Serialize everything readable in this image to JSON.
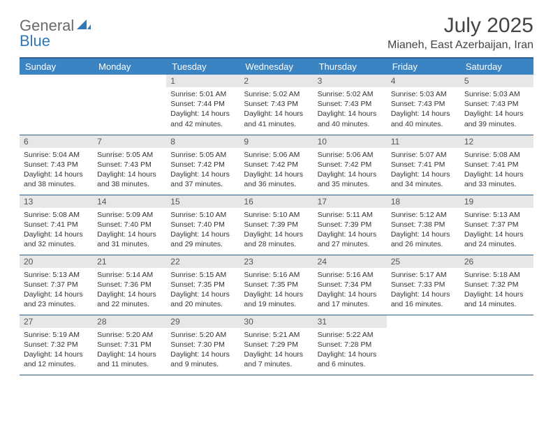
{
  "logo": {
    "part1": "General",
    "part2": "Blue"
  },
  "title": "July 2025",
  "location": "Mianeh, East Azerbaijan, Iran",
  "colors": {
    "header_bg": "#3b84c4",
    "header_border": "#2a5f8f",
    "daynum_bg": "#e7e7e7",
    "logo_gray": "#6a6a6a",
    "logo_blue": "#2e77b8"
  },
  "weekdays": [
    "Sunday",
    "Monday",
    "Tuesday",
    "Wednesday",
    "Thursday",
    "Friday",
    "Saturday"
  ],
  "weeks": [
    [
      null,
      null,
      {
        "d": "1",
        "sr": "5:01 AM",
        "ss": "7:44 PM",
        "dl": "14 hours and 42 minutes."
      },
      {
        "d": "2",
        "sr": "5:02 AM",
        "ss": "7:43 PM",
        "dl": "14 hours and 41 minutes."
      },
      {
        "d": "3",
        "sr": "5:02 AM",
        "ss": "7:43 PM",
        "dl": "14 hours and 40 minutes."
      },
      {
        "d": "4",
        "sr": "5:03 AM",
        "ss": "7:43 PM",
        "dl": "14 hours and 40 minutes."
      },
      {
        "d": "5",
        "sr": "5:03 AM",
        "ss": "7:43 PM",
        "dl": "14 hours and 39 minutes."
      }
    ],
    [
      {
        "d": "6",
        "sr": "5:04 AM",
        "ss": "7:43 PM",
        "dl": "14 hours and 38 minutes."
      },
      {
        "d": "7",
        "sr": "5:05 AM",
        "ss": "7:43 PM",
        "dl": "14 hours and 38 minutes."
      },
      {
        "d": "8",
        "sr": "5:05 AM",
        "ss": "7:42 PM",
        "dl": "14 hours and 37 minutes."
      },
      {
        "d": "9",
        "sr": "5:06 AM",
        "ss": "7:42 PM",
        "dl": "14 hours and 36 minutes."
      },
      {
        "d": "10",
        "sr": "5:06 AM",
        "ss": "7:42 PM",
        "dl": "14 hours and 35 minutes."
      },
      {
        "d": "11",
        "sr": "5:07 AM",
        "ss": "7:41 PM",
        "dl": "14 hours and 34 minutes."
      },
      {
        "d": "12",
        "sr": "5:08 AM",
        "ss": "7:41 PM",
        "dl": "14 hours and 33 minutes."
      }
    ],
    [
      {
        "d": "13",
        "sr": "5:08 AM",
        "ss": "7:41 PM",
        "dl": "14 hours and 32 minutes."
      },
      {
        "d": "14",
        "sr": "5:09 AM",
        "ss": "7:40 PM",
        "dl": "14 hours and 31 minutes."
      },
      {
        "d": "15",
        "sr": "5:10 AM",
        "ss": "7:40 PM",
        "dl": "14 hours and 29 minutes."
      },
      {
        "d": "16",
        "sr": "5:10 AM",
        "ss": "7:39 PM",
        "dl": "14 hours and 28 minutes."
      },
      {
        "d": "17",
        "sr": "5:11 AM",
        "ss": "7:39 PM",
        "dl": "14 hours and 27 minutes."
      },
      {
        "d": "18",
        "sr": "5:12 AM",
        "ss": "7:38 PM",
        "dl": "14 hours and 26 minutes."
      },
      {
        "d": "19",
        "sr": "5:13 AM",
        "ss": "7:37 PM",
        "dl": "14 hours and 24 minutes."
      }
    ],
    [
      {
        "d": "20",
        "sr": "5:13 AM",
        "ss": "7:37 PM",
        "dl": "14 hours and 23 minutes."
      },
      {
        "d": "21",
        "sr": "5:14 AM",
        "ss": "7:36 PM",
        "dl": "14 hours and 22 minutes."
      },
      {
        "d": "22",
        "sr": "5:15 AM",
        "ss": "7:35 PM",
        "dl": "14 hours and 20 minutes."
      },
      {
        "d": "23",
        "sr": "5:16 AM",
        "ss": "7:35 PM",
        "dl": "14 hours and 19 minutes."
      },
      {
        "d": "24",
        "sr": "5:16 AM",
        "ss": "7:34 PM",
        "dl": "14 hours and 17 minutes."
      },
      {
        "d": "25",
        "sr": "5:17 AM",
        "ss": "7:33 PM",
        "dl": "14 hours and 16 minutes."
      },
      {
        "d": "26",
        "sr": "5:18 AM",
        "ss": "7:32 PM",
        "dl": "14 hours and 14 minutes."
      }
    ],
    [
      {
        "d": "27",
        "sr": "5:19 AM",
        "ss": "7:32 PM",
        "dl": "14 hours and 12 minutes."
      },
      {
        "d": "28",
        "sr": "5:20 AM",
        "ss": "7:31 PM",
        "dl": "14 hours and 11 minutes."
      },
      {
        "d": "29",
        "sr": "5:20 AM",
        "ss": "7:30 PM",
        "dl": "14 hours and 9 minutes."
      },
      {
        "d": "30",
        "sr": "5:21 AM",
        "ss": "7:29 PM",
        "dl": "14 hours and 7 minutes."
      },
      {
        "d": "31",
        "sr": "5:22 AM",
        "ss": "7:28 PM",
        "dl": "14 hours and 6 minutes."
      },
      null,
      null
    ]
  ],
  "labels": {
    "sunrise": "Sunrise:",
    "sunset": "Sunset:",
    "daylight": "Daylight:"
  }
}
